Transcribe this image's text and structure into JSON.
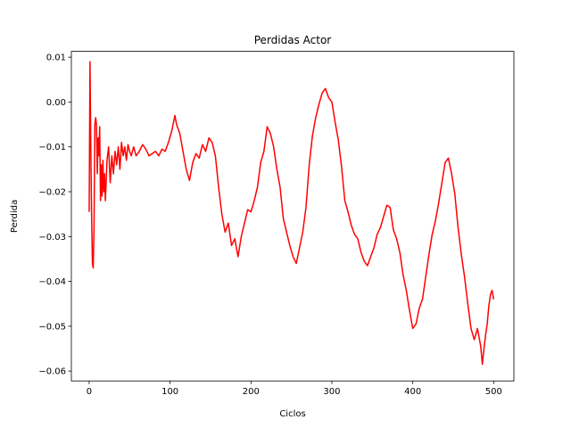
{
  "chart_data": {
    "type": "line",
    "title": "Perdidas Actor",
    "xlabel": "Ciclos",
    "ylabel": "Perdida",
    "xlim": [
      -22,
      525
    ],
    "ylim": [
      -0.0622,
      0.0113
    ],
    "xticks": [
      0,
      100,
      200,
      300,
      400,
      500
    ],
    "xtick_labels": [
      "0",
      "100",
      "200",
      "300",
      "400",
      "500"
    ],
    "yticks": [
      -0.06,
      -0.05,
      -0.04,
      -0.03,
      -0.02,
      -0.01,
      0.0,
      0.01
    ],
    "ytick_labels": [
      "−0.06",
      "−0.05",
      "−0.04",
      "−0.03",
      "−0.02",
      "−0.01",
      "0.00",
      "0.01"
    ],
    "grid": false,
    "series": [
      {
        "color": "#ff0000",
        "x": [
          0,
          1,
          2,
          3,
          4,
          5,
          6,
          7,
          8,
          9,
          10,
          11,
          12,
          13,
          14,
          15,
          16,
          17,
          18,
          19,
          20,
          21,
          22,
          24,
          26,
          28,
          30,
          32,
          34,
          36,
          38,
          40,
          42,
          44,
          46,
          48,
          50,
          52,
          55,
          58,
          62,
          66,
          70,
          74,
          78,
          82,
          86,
          90,
          94,
          98,
          102,
          106,
          108,
          112,
          116,
          120,
          124,
          128,
          132,
          136,
          140,
          144,
          148,
          152,
          156,
          160,
          164,
          168,
          172,
          176,
          180,
          184,
          188,
          192,
          196,
          200,
          204,
          208,
          212,
          216,
          220,
          224,
          228,
          232,
          236,
          240,
          244,
          248,
          252,
          256,
          260,
          264,
          268,
          272,
          276,
          280,
          284,
          288,
          292,
          296,
          300,
          304,
          308,
          312,
          316,
          320,
          324,
          328,
          332,
          336,
          340,
          344,
          348,
          352,
          356,
          360,
          364,
          368,
          372,
          376,
          380,
          384,
          388,
          392,
          396,
          400,
          404,
          408,
          412,
          416,
          420,
          424,
          428,
          432,
          436,
          440,
          444,
          448,
          452,
          456,
          460,
          464,
          468,
          472,
          476,
          480,
          484,
          486,
          488,
          490,
          492,
          494,
          496,
          498,
          500
        ],
        "y": [
          -0.0245,
          0.009,
          -0.01,
          -0.025,
          -0.036,
          -0.037,
          -0.028,
          -0.005,
          -0.0035,
          -0.005,
          -0.016,
          -0.008,
          -0.012,
          -0.0055,
          -0.022,
          -0.014,
          -0.021,
          -0.013,
          -0.02,
          -0.016,
          -0.022,
          -0.018,
          -0.013,
          -0.01,
          -0.018,
          -0.012,
          -0.016,
          -0.011,
          -0.014,
          -0.01,
          -0.015,
          -0.009,
          -0.012,
          -0.01,
          -0.013,
          -0.0095,
          -0.011,
          -0.012,
          -0.01,
          -0.012,
          -0.011,
          -0.0095,
          -0.0105,
          -0.012,
          -0.0115,
          -0.011,
          -0.012,
          -0.0105,
          -0.011,
          -0.009,
          -0.0065,
          -0.003,
          -0.005,
          -0.007,
          -0.011,
          -0.015,
          -0.0175,
          -0.0135,
          -0.0115,
          -0.0125,
          -0.0095,
          -0.011,
          -0.008,
          -0.009,
          -0.012,
          -0.019,
          -0.025,
          -0.029,
          -0.027,
          -0.032,
          -0.0305,
          -0.0345,
          -0.03,
          -0.027,
          -0.024,
          -0.0245,
          -0.022,
          -0.019,
          -0.0135,
          -0.011,
          -0.0055,
          -0.007,
          -0.01,
          -0.015,
          -0.019,
          -0.026,
          -0.029,
          -0.032,
          -0.0345,
          -0.036,
          -0.0325,
          -0.029,
          -0.0235,
          -0.014,
          -0.0075,
          -0.0035,
          -0.0005,
          0.002,
          0.003,
          0.001,
          0.0,
          -0.0045,
          -0.0085,
          -0.0145,
          -0.022,
          -0.0245,
          -0.0275,
          -0.0295,
          -0.0305,
          -0.0335,
          -0.0355,
          -0.0365,
          -0.0345,
          -0.0325,
          -0.0295,
          -0.028,
          -0.0255,
          -0.023,
          -0.0235,
          -0.0285,
          -0.0305,
          -0.0335,
          -0.0385,
          -0.042,
          -0.0465,
          -0.0505,
          -0.0495,
          -0.046,
          -0.044,
          -0.039,
          -0.034,
          -0.0295,
          -0.0265,
          -0.0225,
          -0.018,
          -0.0135,
          -0.0125,
          -0.016,
          -0.0205,
          -0.028,
          -0.034,
          -0.039,
          -0.045,
          -0.0505,
          -0.053,
          -0.0505,
          -0.0545,
          -0.0585,
          -0.055,
          -0.052,
          -0.0495,
          -0.0455,
          -0.043,
          -0.042,
          -0.044
        ]
      }
    ]
  }
}
